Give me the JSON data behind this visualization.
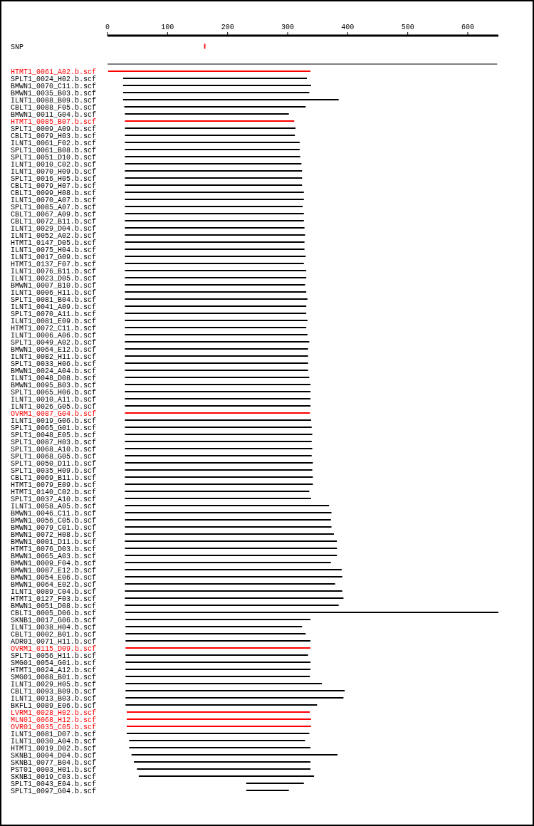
{
  "chart_data": {
    "type": "bar",
    "orientation": "horizontal",
    "xlim": [
      0,
      651
    ],
    "xticks": [
      0,
      100,
      200,
      300,
      400,
      500,
      600
    ],
    "grid": false,
    "categories": [
      "SNP",
      null,
      "HTMT1_0061_A02.b.scf",
      "SPLT1_0024_H02.b.scf",
      "BMWN1_0070_C11.b.scf",
      "BMWN1_0035_B03.b.scf",
      "ILNT1_0088_B09.b.scf",
      "CBLT1_0088_F05.b.scf",
      "BMWN1_0011_G04.b.scf",
      "HTMT1_0085_B07.b.scf",
      "SPLT1_0009_A09.b.scf",
      "CBLT1_0079_H03.b.scf",
      "ILNT1_0061_F02.b.scf",
      "SPLT1_0061_B08.b.scf",
      "SPLT1_0051_D10.b.scf",
      "ILNT1_0010_C02.b.scf",
      "ILNT1_0070_H09.b.scf",
      "SPLT1_0016_H05.b.scf",
      "CBLT1_0079_H07.b.scf",
      "CBLT1_0099_H08.b.scf",
      "ILNT1_0070_A07.b.scf",
      "SPLT1_0085_A07.b.scf",
      "CBLT1_0067_A09.b.scf",
      "CBLT1_0072_B11.b.scf",
      "ILNT1_0029_D04.b.scf",
      "ILNT1_0052_A02.b.scf",
      "HTMT1_0147_D05.b.scf",
      "ILNT1_0075_H04.b.scf",
      "ILNT1_0017_G09.b.scf",
      "HTMT1_0137_F07.b.scf",
      "ILNT1_0076_B11.b.scf",
      "ILNT1_0023_D05.b.scf",
      "BMWN1_0007_B10.b.scf",
      "ILNT1_0006_H11.b.scf",
      "SPLT1_0081_B04.b.scf",
      "ILNT1_0041_A09.b.scf",
      "SPLT1_0070_A11.b.scf",
      "ILNT1_0081_E09.b.scf",
      "HTMT1_0072_C11.b.scf",
      "ILNT1_0006_A06.b.scf",
      "SPLT1_0049_A02.b.scf",
      "BMWN1_0064_E12.b.scf",
      "ILNT1_0082_H11.b.scf",
      "SPLT1_0033_H06.b.scf",
      "BMWN1_0024_A04.b.scf",
      "ILNT1_0048_D08.b.scf",
      "BMWN1_0095_B03.b.scf",
      "SPLT1_0065_H06.b.scf",
      "ILNT1_0010_A11.b.scf",
      "ILNT1_0026_G05.b.scf",
      "OVRM1_0087_G04.b.scf",
      "ILNT1_0019_G06.b.scf",
      "SPLT1_0065_G01.b.scf",
      "SPLT1_0048_E05.b.scf",
      "SPLT1_0087_H03.b.scf",
      "SPLT1_0068_A10.b.scf",
      "SPLT1_0068_G05.b.scf",
      "SPLT1_0050_D11.b.scf",
      "SPLT1_0035_H09.b.scf",
      "CBLT1_0069_B11.b.scf",
      "HTMT1_0079_E09.b.scf",
      "HTMT1_0140_C02.b.scf",
      "SPLT1_0037_A10.b.scf",
      "ILNT1_0058_A05.b.scf",
      "BMWN1_0046_C11.b.scf",
      "BMWN1_0056_C05.b.scf",
      "BMWN1_0079_C01.b.scf",
      "BMWN1_0072_H08.b.scf",
      "BMWN1_0001_D11.b.scf",
      "HTMT1_0076_D03.b.scf",
      "BMWN1_0065_A03.b.scf",
      "BMWN1_0009_F04.b.scf",
      "BMWN1_0087_E12.b.scf",
      "BMWN1_0054_E06.b.scf",
      "BMWN1_0064_E02.b.scf",
      "ILNT1_0089_C04.b.scf",
      "HTMT1_0127_F03.b.scf",
      "BMWN1_0051_D08.b.scf",
      "CBLT1_0005_D06.b.scf",
      "SKNB1_0017_G06.b.scf",
      "ILNT1_0038_H04.b.scf",
      "CBLT1_0002_B01.b.scf",
      "ADR01_0071_H11.b.scf",
      "OVRM1_0115_D09.b.scf",
      "SPLT1_0056_H11.b.scf",
      "SMG01_0054_G01.b.scf",
      "HTMT1_0024_A12.b.scf",
      "SMG01_0088_B01.b.scf",
      "ILNT1_0029_H05.b.scf",
      "CBLT1_0093_B09.b.scf",
      "ILNT1_0013_B03.b.scf",
      "BKFL1_0089_E06.b.scf",
      "LVRM1_0028_H02.b.scf",
      "MLN01_0068_H12.b.scf",
      "OVR01_0035_C05.b.scf",
      "ILNT1_0081_D07.b.scf",
      "ILNT1_0030_A04.b.scf",
      "HTMT1_0019_D02.b.scf",
      "SKNB1_0004_D04.b.scf",
      "SKNB1_0077_B04.b.scf",
      "PST01_0003_H01.b.scf",
      "SKNB1_0019_C03.b.scf",
      "SPLT1_0043_E04.b.scf",
      "SPLT1_0097_G04.b.scf"
    ],
    "base": [
      161,
      0,
      1,
      26,
      26,
      26,
      26,
      28,
      29,
      29,
      29,
      29,
      29,
      29,
      29,
      29,
      29,
      29,
      29,
      29,
      29,
      29,
      29,
      29,
      29,
      29,
      29,
      29,
      29,
      29,
      29,
      29,
      29,
      29,
      29,
      29,
      29,
      29,
      29,
      29,
      29,
      29,
      29,
      29,
      29,
      29,
      29,
      29,
      29,
      29,
      29,
      29,
      29,
      29,
      29,
      29,
      29,
      29,
      29,
      29,
      29,
      29,
      29,
      29,
      29,
      29,
      29,
      29,
      29,
      29,
      29,
      29,
      29,
      29,
      29,
      29,
      29,
      29,
      29,
      30,
      30,
      30,
      30,
      30,
      30,
      30,
      30,
      30,
      30,
      30,
      30,
      30,
      32,
      32,
      32,
      32,
      36,
      36,
      40,
      44,
      49,
      52,
      231,
      231
    ],
    "values": [
      2,
      649,
      337,
      306,
      313,
      310,
      359,
      302,
      273,
      282,
      284,
      283,
      291,
      291,
      292,
      294,
      295,
      295,
      295,
      298,
      298,
      296,
      298,
      298,
      299,
      300,
      299,
      299,
      301,
      298,
      302,
      302,
      300,
      302,
      304,
      302,
      302,
      304,
      302,
      304,
      307,
      305,
      305,
      305,
      305,
      307,
      309,
      309,
      309,
      309,
      308,
      310,
      311,
      312,
      311,
      312,
      311,
      313,
      312,
      313,
      313,
      307,
      310,
      340,
      344,
      343,
      344,
      348,
      353,
      353,
      353,
      343,
      361,
      362,
      350,
      362,
      364,
      356,
      622,
      308,
      294,
      300,
      308,
      308,
      304,
      308,
      308,
      307,
      327,
      365,
      363,
      319,
      305,
      307,
      307,
      304,
      293,
      302,
      343,
      294,
      289,
      292,
      96,
      71
    ],
    "colors": [
      "#ff0000",
      "#000000",
      "#ff0000",
      "#000000",
      "#000000",
      "#000000",
      "#000000",
      "#000000",
      "#000000",
      "#ff0000",
      "#000000",
      "#000000",
      "#000000",
      "#000000",
      "#000000",
      "#000000",
      "#000000",
      "#000000",
      "#000000",
      "#000000",
      "#000000",
      "#000000",
      "#000000",
      "#000000",
      "#000000",
      "#000000",
      "#000000",
      "#000000",
      "#000000",
      "#000000",
      "#000000",
      "#000000",
      "#000000",
      "#000000",
      "#000000",
      "#000000",
      "#000000",
      "#000000",
      "#000000",
      "#000000",
      "#000000",
      "#000000",
      "#000000",
      "#000000",
      "#000000",
      "#000000",
      "#000000",
      "#000000",
      "#000000",
      "#000000",
      "#ff0000",
      "#000000",
      "#000000",
      "#000000",
      "#000000",
      "#000000",
      "#000000",
      "#000000",
      "#000000",
      "#000000",
      "#000000",
      "#000000",
      "#000000",
      "#000000",
      "#000000",
      "#000000",
      "#000000",
      "#000000",
      "#000000",
      "#000000",
      "#000000",
      "#000000",
      "#000000",
      "#000000",
      "#000000",
      "#000000",
      "#000000",
      "#000000",
      "#000000",
      "#000000",
      "#000000",
      "#000000",
      "#000000",
      "#ff0000",
      "#000000",
      "#000000",
      "#000000",
      "#000000",
      "#000000",
      "#000000",
      "#000000",
      "#000000",
      "#ff0000",
      "#ff0000",
      "#ff0000",
      "#000000",
      "#000000",
      "#000000",
      "#000000",
      "#000000",
      "#000000",
      "#000000",
      "#000000",
      "#000000"
    ]
  }
}
